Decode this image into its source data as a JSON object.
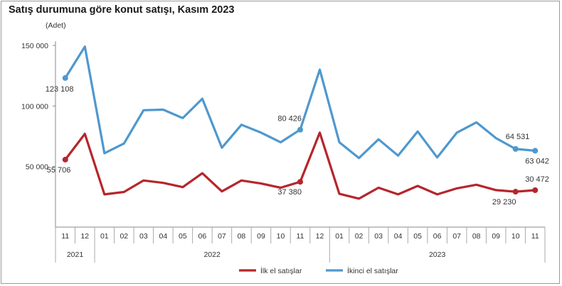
{
  "title": "Satış durumuna göre konut satışı, Kasım 2023",
  "unit": "(Adet)",
  "chart_data": {
    "type": "line",
    "title": "Satış durumuna göre konut satışı, Kasım 2023",
    "ylabel": "(Adet)",
    "ylim": [
      0,
      150000
    ],
    "yticks": [
      50000,
      100000,
      150000
    ],
    "ytick_labels": [
      "50 000",
      "100 000",
      "150 000"
    ],
    "grid": false,
    "legend_position": "bottom",
    "x": [
      "11",
      "12",
      "01",
      "02",
      "03",
      "04",
      "05",
      "06",
      "07",
      "08",
      "09",
      "10",
      "11",
      "12",
      "01",
      "02",
      "03",
      "04",
      "05",
      "06",
      "07",
      "08",
      "09",
      "10",
      "11"
    ],
    "year_groups": [
      {
        "label": "2021",
        "start": 0,
        "end": 1
      },
      {
        "label": "2022",
        "start": 2,
        "end": 13
      },
      {
        "label": "2023",
        "start": 14,
        "end": 24
      }
    ],
    "series": [
      {
        "name": "İlk el satışlar",
        "color": "#b5262c",
        "values": [
          55706,
          77000,
          27000,
          29000,
          38500,
          36500,
          33000,
          44500,
          29500,
          38500,
          36000,
          32500,
          37380,
          78000,
          27500,
          23500,
          32500,
          27000,
          34000,
          27000,
          32000,
          35000,
          30500,
          29230,
          30472
        ]
      },
      {
        "name": "İkinci el satışlar",
        "color": "#4e98cf",
        "values": [
          123108,
          149000,
          61000,
          69000,
          96500,
          97000,
          90000,
          106000,
          65500,
          84500,
          78000,
          70000,
          80426,
          130000,
          70000,
          57000,
          72500,
          59000,
          79000,
          57500,
          78000,
          86500,
          73500,
          64531,
          63042
        ]
      }
    ],
    "annotations": [
      {
        "series": 1,
        "index": 0,
        "text": "123 108"
      },
      {
        "series": 0,
        "index": 0,
        "text": "55 706"
      },
      {
        "series": 1,
        "index": 12,
        "text": "80 426"
      },
      {
        "series": 0,
        "index": 12,
        "text": "37 380"
      },
      {
        "series": 1,
        "index": 23,
        "text": "64 531"
      },
      {
        "series": 1,
        "index": 24,
        "text": "63 042"
      },
      {
        "series": 0,
        "index": 23,
        "text": "29 230"
      },
      {
        "series": 0,
        "index": 24,
        "text": "30 472"
      }
    ]
  }
}
